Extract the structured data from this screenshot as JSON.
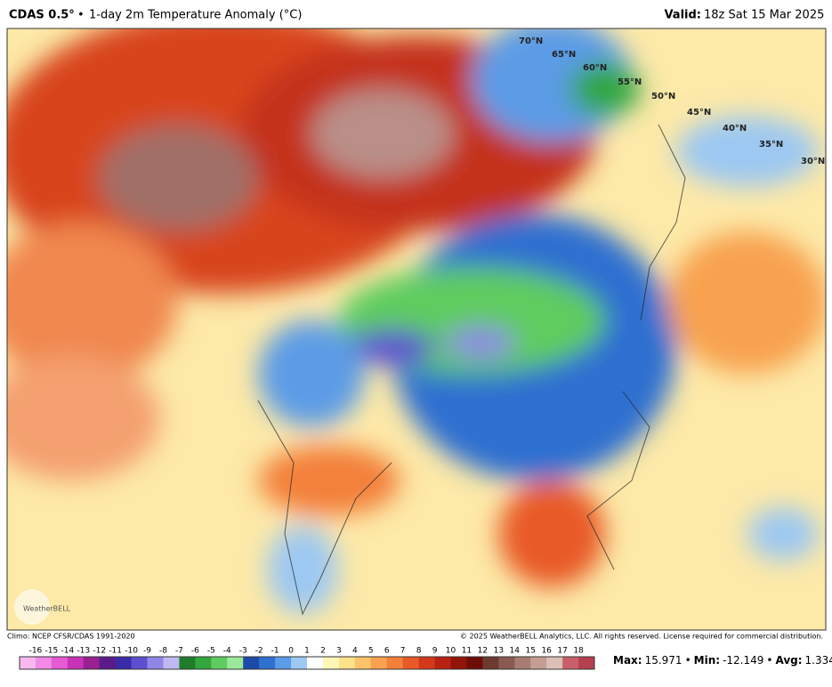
{
  "header": {
    "model": "CDAS 0.5°",
    "separator": "•",
    "title": "1-day 2m Temperature Anomaly (°C)",
    "valid_label": "Valid:",
    "valid_time": "18z Sat 15 Mar 2025"
  },
  "map": {
    "latitude_labels": [
      "70°N",
      "65°N",
      "60°N",
      "55°N",
      "50°N",
      "45°N",
      "40°N",
      "35°N",
      "30°N"
    ],
    "logo": "WeatherBELL"
  },
  "footer": {
    "climo": "Climo: NCEP CFSR/CDAS 1991-2020",
    "copyright": "© 2025 WeatherBELL Analytics, LLC. All rights reserved. License required for commercial distribution."
  },
  "legend": {
    "ticks": [
      -16,
      -15,
      -14,
      -13,
      -12,
      -11,
      -10,
      -9,
      -8,
      -7,
      -6,
      -5,
      -4,
      -3,
      -2,
      -1,
      0,
      1,
      2,
      3,
      4,
      5,
      6,
      7,
      8,
      9,
      10,
      11,
      12,
      13,
      14,
      15,
      16,
      17,
      18
    ],
    "colors": [
      "#f9b8f0",
      "#f28ae6",
      "#e65ad6",
      "#c832b8",
      "#98208f",
      "#5a1a88",
      "#3b2aa8",
      "#5d4fcf",
      "#8f86e6",
      "#c0b8f2",
      "#1f7d2a",
      "#33a63d",
      "#5fcc5f",
      "#9ce89a",
      "#1d4aa8",
      "#2f6fd0",
      "#5c9be6",
      "#9cc8f2",
      "#ffffff",
      "#fff6b8",
      "#fde28a",
      "#fbc46a",
      "#f8a250",
      "#f3803a",
      "#e85a28",
      "#d4381a",
      "#b82212",
      "#921408",
      "#6e0d06",
      "#6e3a30",
      "#8a5a50",
      "#a87c72",
      "#c49e94",
      "#dcc0b8",
      "#c8606a",
      "#b44050"
    ],
    "stats": {
      "max_label": "Max:",
      "max": 15.971,
      "min_label": "Min:",
      "min": -12.149,
      "avg_label": "Avg:",
      "avg": 1.334
    }
  }
}
